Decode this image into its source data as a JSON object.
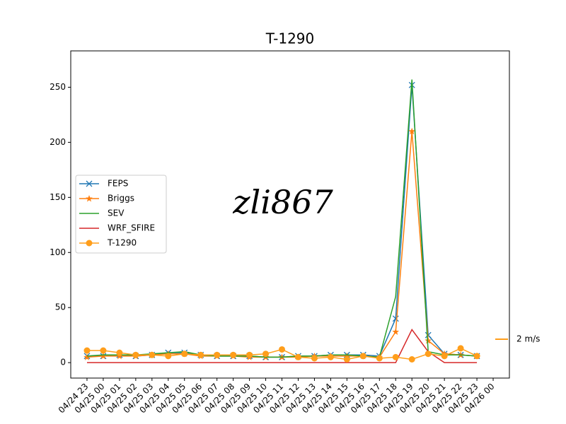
{
  "chart_data": {
    "type": "line",
    "title": "T-1290",
    "x": [
      "04/24 23",
      "04/25 00",
      "04/25 01",
      "04/25 02",
      "04/25 03",
      "04/25 04",
      "04/25 05",
      "04/25 06",
      "04/25 07",
      "04/25 08",
      "04/25 09",
      "04/25 10",
      "04/25 11",
      "04/25 12",
      "04/25 13",
      "04/25 14",
      "04/25 15",
      "04/25 16",
      "04/25 17",
      "04/25 18",
      "04/25 19",
      "04/25 20",
      "04/25 21",
      "04/25 22",
      "04/25 23"
    ],
    "series": [
      {
        "name": "FEPS",
        "color": "#1f77b4",
        "marker": "x",
        "values": [
          6,
          6,
          7,
          6,
          7,
          9,
          9,
          7,
          6,
          6,
          6,
          5,
          5,
          6,
          6,
          7,
          7,
          7,
          6,
          40,
          252,
          25,
          8,
          7,
          6
        ]
      },
      {
        "name": "Briggs",
        "color": "#ff7f0e",
        "marker": "star",
        "values": [
          5,
          6,
          6,
          6,
          7,
          8,
          8,
          6,
          6,
          6,
          5,
          5,
          5,
          5,
          6,
          6,
          6,
          6,
          5,
          28,
          210,
          20,
          8,
          7,
          6
        ]
      },
      {
        "name": "SEV",
        "color": "#2ca02c",
        "marker": "none",
        "values": [
          6,
          7,
          7,
          7,
          8,
          9,
          10,
          7,
          6,
          6,
          6,
          5,
          5,
          6,
          6,
          7,
          7,
          6,
          5,
          60,
          257,
          10,
          7,
          7,
          6
        ]
      },
      {
        "name": "WRF_SFIRE",
        "color": "#d62728",
        "marker": "none",
        "values": [
          0,
          0,
          0,
          0,
          0,
          0,
          0,
          0,
          0,
          0,
          0,
          0,
          0,
          0,
          0,
          0,
          0,
          0,
          0,
          0,
          30,
          10,
          0,
          0,
          0
        ]
      },
      {
        "name": "T-1290",
        "color": "#ff9e1b",
        "marker": "circle",
        "values": [
          11,
          11,
          9,
          7,
          7,
          6,
          8,
          7,
          7,
          7,
          7,
          8,
          12,
          5,
          4,
          5,
          3,
          6,
          4,
          5,
          3,
          8,
          6,
          13,
          6
        ]
      }
    ],
    "xticks": [
      "04/24 23",
      "04/25 00",
      "04/25 01",
      "04/25 02",
      "04/25 03",
      "04/25 04",
      "04/25 05",
      "04/25 06",
      "04/25 07",
      "04/25 08",
      "04/25 09",
      "04/25 10",
      "04/25 11",
      "04/25 12",
      "04/25 13",
      "04/25 14",
      "04/25 15",
      "04/25 16",
      "04/25 17",
      "04/25 18",
      "04/25 19",
      "04/25 20",
      "04/25 21",
      "04/25 22",
      "04/25 23",
      "04/26 00"
    ],
    "ylim": [
      -14,
      283
    ],
    "yticks": [
      0,
      50,
      100,
      150,
      200,
      250
    ],
    "legend": "left",
    "watermark": "zli867",
    "quiver_key": "2 m/s"
  }
}
